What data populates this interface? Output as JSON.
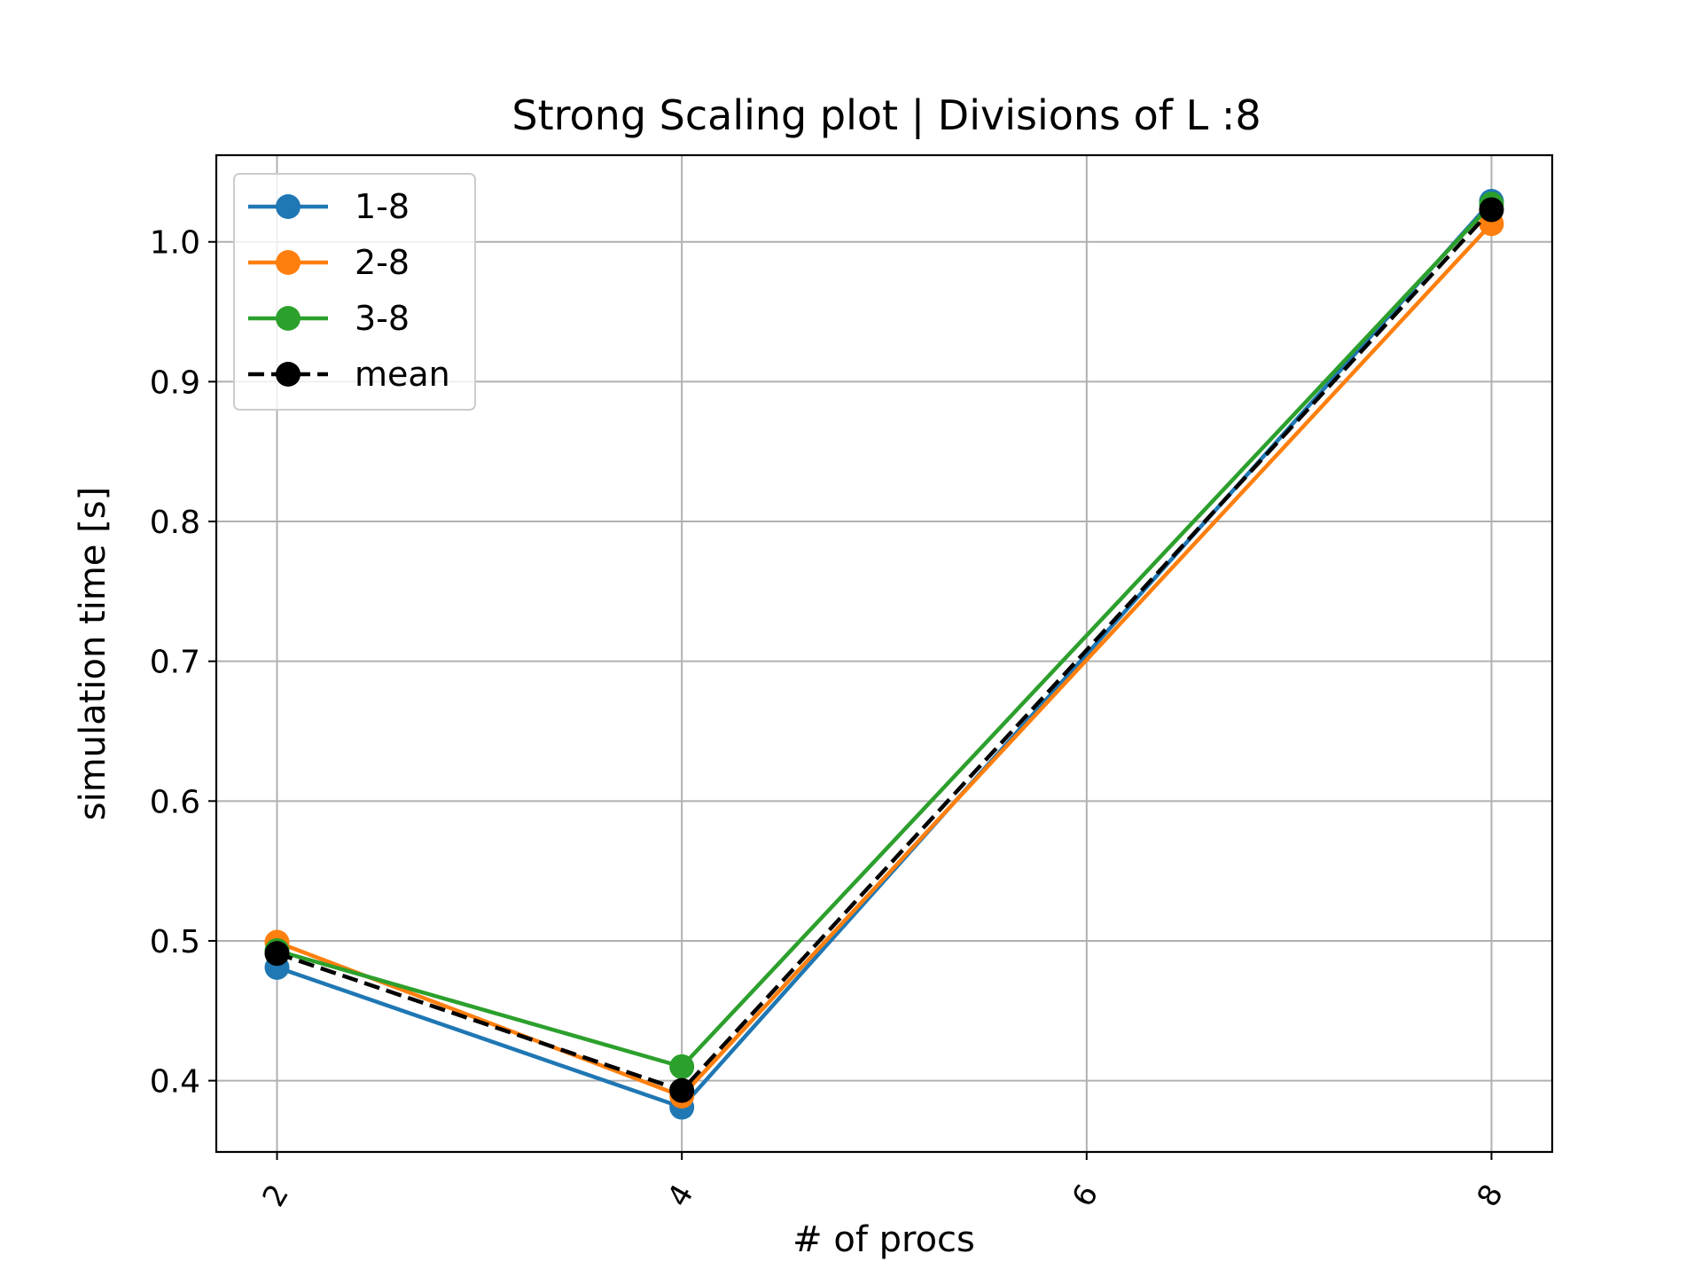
{
  "chart_data": {
    "type": "line",
    "title": "Strong Scaling plot | Divisions of L :8",
    "xlabel": "# of procs",
    "ylabel": "simulation time [s]",
    "x": [
      2,
      4,
      8
    ],
    "xlim": [
      1.7,
      8.3
    ],
    "ylim": [
      0.349,
      1.062
    ],
    "xticks": [
      2,
      4,
      6,
      8
    ],
    "xtick_labels": [
      "2",
      "4",
      "6",
      "8"
    ],
    "xtick_rotation": "rotated",
    "yticks": [
      0.4,
      0.5,
      0.6,
      0.7,
      0.8,
      0.9,
      1.0
    ],
    "ytick_labels": [
      "0.4",
      "0.5",
      "0.6",
      "0.7",
      "0.8",
      "0.9",
      "1.0"
    ],
    "grid": true,
    "legend_position": "top-left",
    "series": [
      {
        "name": "1-8",
        "values": [
          0.481,
          0.381,
          1.029
        ],
        "color": "#1f77b4",
        "line_style": "solid"
      },
      {
        "name": "2-8",
        "values": [
          0.499,
          0.389,
          1.013
        ],
        "color": "#ff7f0e",
        "line_style": "solid"
      },
      {
        "name": "3-8",
        "values": [
          0.493,
          0.41,
          1.027
        ],
        "color": "#2ca02c",
        "line_style": "solid"
      },
      {
        "name": "mean",
        "values": [
          0.491,
          0.393,
          1.023
        ],
        "color": "#000000",
        "line_style": "dashed"
      }
    ]
  }
}
